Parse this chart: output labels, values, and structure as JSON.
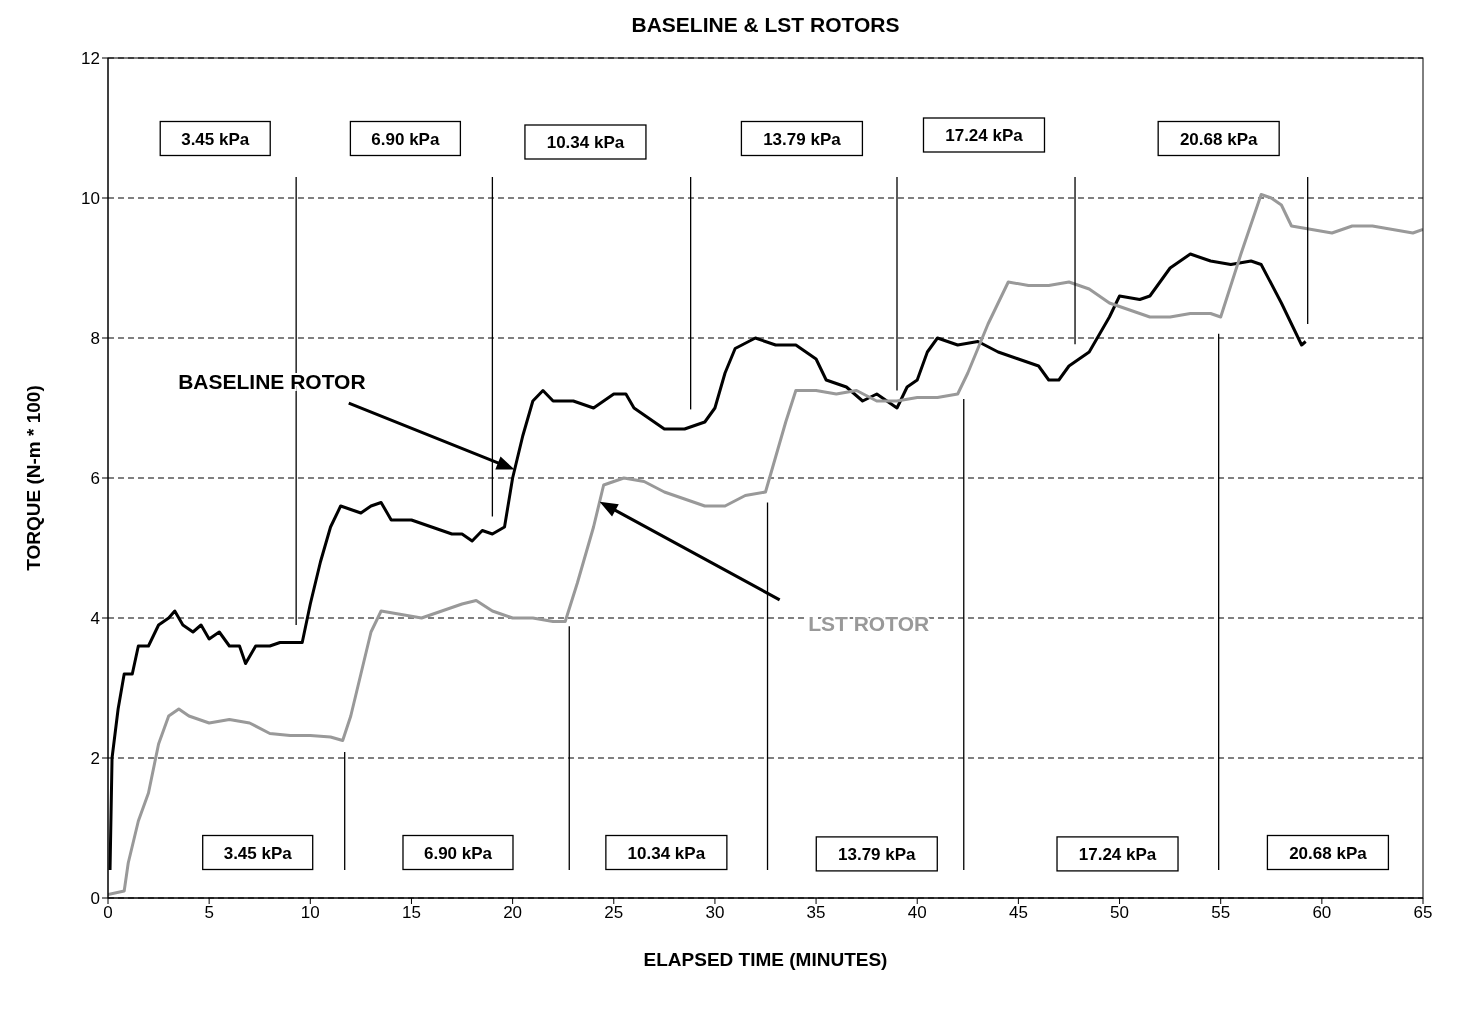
{
  "chart_data": {
    "type": "line",
    "title": "BASELINE & LST ROTORS",
    "xlabel": "ELAPSED TIME (MINUTES)",
    "ylabel": "TORQUE (N-m * 100)",
    "xlim": [
      0,
      65
    ],
    "xticks": [
      0,
      5,
      10,
      15,
      20,
      25,
      30,
      35,
      40,
      45,
      50,
      55,
      60,
      65
    ],
    "ylim": [
      0,
      12
    ],
    "yticks": [
      0,
      2,
      4,
      6,
      8,
      10,
      12
    ],
    "grid": "y",
    "marker": "none",
    "line_style": "solid",
    "series": [
      {
        "name": "BASELINE ROTOR",
        "color": "#000000",
        "x": [
          0.1,
          0.2,
          0.5,
          0.8,
          1.2,
          1.5,
          2,
          2.5,
          3,
          3.3,
          3.7,
          4.2,
          4.6,
          5,
          5.5,
          6,
          6.5,
          6.8,
          7.3,
          8,
          8.5,
          9,
          9.6,
          10,
          10.5,
          11,
          11.5,
          12,
          12.5,
          13,
          13.5,
          14,
          15,
          16,
          17,
          17.5,
          18,
          18.5,
          19,
          19.6,
          20,
          20.5,
          21,
          21.5,
          22,
          23,
          24,
          25,
          25.6,
          26,
          26.5,
          27.5,
          28.5,
          29.5,
          30,
          30.5,
          31,
          32,
          33,
          34,
          35,
          35.5,
          36.5,
          37.3,
          38,
          38.5,
          39,
          39.5,
          40,
          40.5,
          41,
          42,
          43,
          44,
          45,
          46,
          46.5,
          47,
          47.5,
          48.5,
          49.5,
          50,
          51,
          51.5,
          52.5,
          53.5,
          54.5,
          55.5,
          56.5,
          57,
          58,
          59,
          59.2
        ],
        "values": [
          0.4,
          2.0,
          2.7,
          3.2,
          3.2,
          3.6,
          3.6,
          3.9,
          4.0,
          4.1,
          3.9,
          3.8,
          3.9,
          3.7,
          3.8,
          3.6,
          3.6,
          3.35,
          3.6,
          3.6,
          3.65,
          3.65,
          3.65,
          4.2,
          4.8,
          5.3,
          5.6,
          5.55,
          5.5,
          5.6,
          5.65,
          5.4,
          5.4,
          5.3,
          5.2,
          5.2,
          5.1,
          5.25,
          5.2,
          5.3,
          6.0,
          6.6,
          7.1,
          7.25,
          7.1,
          7.1,
          7.0,
          7.2,
          7.2,
          7.0,
          6.9,
          6.7,
          6.7,
          6.8,
          7.0,
          7.5,
          7.85,
          8.0,
          7.9,
          7.9,
          7.7,
          7.4,
          7.3,
          7.1,
          7.2,
          7.1,
          7.0,
          7.3,
          7.4,
          7.8,
          8.0,
          7.9,
          7.95,
          7.8,
          7.7,
          7.6,
          7.4,
          7.4,
          7.6,
          7.8,
          8.3,
          8.6,
          8.55,
          8.6,
          9.0,
          9.2,
          9.1,
          9.05,
          9.1,
          9.05,
          8.5,
          7.9,
          7.95
        ]
      },
      {
        "name": "LST ROTOR",
        "color": "#999999",
        "x": [
          0,
          0.8,
          1,
          1.5,
          2,
          2.5,
          3,
          3.5,
          4,
          5,
          6,
          7,
          8,
          9,
          10,
          11,
          11.6,
          12,
          12.5,
          13,
          13.5,
          14.5,
          15.5,
          16.5,
          17.5,
          18.2,
          19,
          20,
          21,
          22,
          22.6,
          23.2,
          24,
          24.5,
          25.5,
          26.5,
          27.5,
          28.5,
          29.5,
          30.5,
          31.5,
          32.5,
          33,
          33.5,
          34,
          35,
          36,
          37,
          38,
          39,
          40,
          41,
          42,
          42.5,
          43.5,
          44.5,
          45.5,
          46.5,
          47.5,
          48.5,
          49.5,
          50.5,
          51.5,
          52.5,
          53.5,
          54.5,
          55,
          56,
          57,
          57.5,
          58,
          58.5,
          59.5,
          60.5,
          61.5,
          62.5,
          63.5,
          64.5,
          65
        ],
        "values": [
          0.05,
          0.1,
          0.5,
          1.1,
          1.5,
          2.2,
          2.6,
          2.7,
          2.6,
          2.5,
          2.55,
          2.5,
          2.35,
          2.32,
          2.32,
          2.3,
          2.25,
          2.6,
          3.2,
          3.8,
          4.1,
          4.05,
          4.0,
          4.1,
          4.2,
          4.25,
          4.1,
          4.0,
          4.0,
          3.95,
          3.95,
          4.5,
          5.3,
          5.9,
          6.0,
          5.95,
          5.8,
          5.7,
          5.6,
          5.6,
          5.75,
          5.8,
          6.3,
          6.8,
          7.25,
          7.25,
          7.2,
          7.25,
          7.1,
          7.1,
          7.15,
          7.15,
          7.2,
          7.5,
          8.2,
          8.8,
          8.75,
          8.75,
          8.8,
          8.7,
          8.5,
          8.4,
          8.3,
          8.3,
          8.35,
          8.35,
          8.3,
          9.2,
          10.05,
          10.0,
          9.9,
          9.6,
          9.55,
          9.5,
          9.6,
          9.6,
          9.55,
          9.5,
          9.55
        ]
      }
    ],
    "ref_lines": [
      {
        "axis": "x",
        "value": 9.3,
        "color": "#000000"
      },
      {
        "axis": "x",
        "value": 19.0,
        "color": "#000000"
      },
      {
        "axis": "x",
        "value": 28.8,
        "color": "#000000"
      },
      {
        "axis": "x",
        "value": 39.0,
        "color": "#000000"
      },
      {
        "axis": "x",
        "value": 47.8,
        "color": "#000000"
      },
      {
        "axis": "x",
        "value": 59.3,
        "color": "#000000"
      },
      {
        "axis": "x",
        "value": 11.7,
        "color": "#000000"
      },
      {
        "axis": "x",
        "value": 22.8,
        "color": "#000000"
      },
      {
        "axis": "x",
        "value": 32.6,
        "color": "#000000"
      },
      {
        "axis": "x",
        "value": 42.3,
        "color": "#000000"
      },
      {
        "axis": "x",
        "value": 54.9,
        "color": "#000000"
      }
    ],
    "annotations": [
      "3.45 kPa",
      "6.90 kPa",
      "10.34 kPa",
      "13.79 kPa",
      "17.24 kPa",
      "20.68 kPa",
      "3.45 kPa",
      "6.90 kPa",
      "10.34 kPa",
      "13.79 kPa",
      "17.24 kPa",
      "20.68 kPa"
    ]
  }
}
